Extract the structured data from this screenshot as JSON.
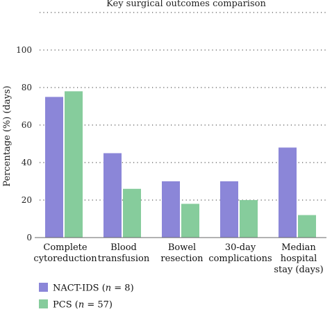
{
  "chart_data": {
    "type": "bar",
    "title": "Key surgical outcomes comparison",
    "ylabel": "Percentage (%) (days)",
    "xlabel": "",
    "ylim": [
      0,
      120
    ],
    "yticks": [
      0,
      20,
      40,
      60,
      80,
      100
    ],
    "grid": "horizontal dotted",
    "legend_position": "bottom-left",
    "categories": [
      [
        "Complete",
        "cytoreduction"
      ],
      [
        "Blood",
        "transfusion"
      ],
      [
        "Bowel",
        "resection"
      ],
      [
        "30-day",
        "complications"
      ],
      [
        "Median",
        "hospital",
        "stay (days)"
      ]
    ],
    "series": [
      {
        "name": "NACT-IDS (n = 8)",
        "name_parts": [
          "NACT-IDS (",
          "n",
          " = 8)"
        ],
        "color": "#8b86d8",
        "values": [
          75,
          45,
          30,
          30,
          48
        ]
      },
      {
        "name": "PCS (n = 57)",
        "name_parts": [
          "PCS (",
          "n",
          " = 57)"
        ],
        "color": "#86cc9c",
        "values": [
          78,
          26,
          18,
          20,
          12
        ]
      }
    ]
  }
}
